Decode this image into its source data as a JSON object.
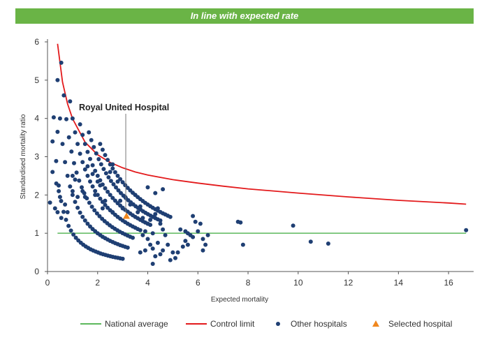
{
  "banner": {
    "text": "In line with expected rate"
  },
  "chart_data": {
    "type": "scatter",
    "xlabel": "Expected mortality",
    "ylabel": "Standardised mortality ratio",
    "xlim": [
      0,
      17
    ],
    "ylim": [
      0,
      6
    ],
    "x_ticks": [
      0,
      2,
      4,
      6,
      8,
      10,
      12,
      14,
      16
    ],
    "y_ticks": [
      0,
      1,
      2,
      3,
      4,
      5,
      6
    ],
    "grid": false,
    "legend_position": "bottom",
    "colors": {
      "national_average": "#5cb85c",
      "control_limit": "#e31a1c",
      "other_hospitals": "#1f3f73",
      "selected_hospital": "#f0871e"
    },
    "national_average": {
      "name": "National average",
      "y": 1
    },
    "control_limit": {
      "name": "Control limit",
      "points": [
        [
          0.4,
          5.95
        ],
        [
          0.6,
          4.95
        ],
        [
          0.8,
          4.38
        ],
        [
          1.0,
          3.99
        ],
        [
          1.5,
          3.38
        ],
        [
          2.0,
          3.05
        ],
        [
          2.5,
          2.85
        ],
        [
          3.0,
          2.71
        ],
        [
          3.5,
          2.6
        ],
        [
          4.0,
          2.52
        ],
        [
          5.0,
          2.4
        ],
        [
          6.0,
          2.31
        ],
        [
          7.0,
          2.23
        ],
        [
          8.0,
          2.16
        ],
        [
          10.0,
          2.05
        ],
        [
          12.0,
          1.95
        ],
        [
          14.0,
          1.86
        ],
        [
          16.0,
          1.79
        ],
        [
          16.7,
          1.76
        ]
      ]
    },
    "other_hospitals": {
      "name": "Other hospitals",
      "points": [
        [
          0.2,
          3.4
        ],
        [
          0.4,
          3.65
        ],
        [
          0.2,
          2.6
        ],
        [
          0.35,
          2.3
        ],
        [
          0.45,
          2.1
        ],
        [
          0.5,
          1.95
        ],
        [
          0.3,
          1.65
        ],
        [
          0.4,
          1.55
        ],
        [
          0.1,
          1.8
        ],
        [
          0.55,
          1.4
        ],
        [
          0.7,
          1.75
        ],
        [
          0.8,
          1.55
        ],
        [
          1.0,
          2.5
        ],
        [
          1.1,
          2.4
        ],
        [
          1.0,
          2.1
        ],
        [
          1.2,
          1.95
        ],
        [
          1.4,
          2.1
        ],
        [
          1.5,
          1.95
        ],
        [
          1.6,
          2.75
        ],
        [
          1.8,
          2.55
        ],
        [
          2.0,
          2.35
        ],
        [
          2.1,
          2.25
        ],
        [
          1.9,
          2.0
        ],
        [
          2.3,
          1.85
        ],
        [
          2.2,
          1.65
        ],
        [
          2.5,
          2.6
        ],
        [
          2.6,
          2.8
        ],
        [
          2.8,
          2.35
        ],
        [
          2.6,
          1.55
        ],
        [
          2.9,
          1.85
        ],
        [
          3.1,
          1.95
        ],
        [
          3.0,
          1.65
        ],
        [
          3.3,
          1.75
        ],
        [
          3.5,
          2.0
        ],
        [
          3.6,
          1.55
        ],
        [
          3.7,
          1.7
        ],
        [
          4.0,
          2.2
        ],
        [
          4.3,
          2.05
        ],
        [
          4.6,
          2.15
        ],
        [
          4.4,
          1.65
        ],
        [
          4.3,
          1.5
        ],
        [
          4.1,
          1.35
        ],
        [
          4.5,
          1.25
        ],
        [
          4.6,
          1.1
        ],
        [
          4.2,
          1.0
        ],
        [
          4.4,
          0.75
        ],
        [
          4.7,
          0.95
        ],
        [
          4.8,
          0.7
        ],
        [
          4.6,
          0.55
        ],
        [
          4.3,
          0.4
        ],
        [
          4.2,
          0.2
        ],
        [
          5.0,
          0.5
        ],
        [
          5.1,
          0.35
        ],
        [
          5.3,
          1.1
        ],
        [
          5.5,
          1.05
        ],
        [
          5.6,
          1.0
        ],
        [
          5.7,
          0.95
        ],
        [
          5.5,
          0.8
        ],
        [
          5.6,
          0.7
        ],
        [
          5.4,
          0.65
        ],
        [
          5.8,
          1.45
        ],
        [
          5.9,
          1.3
        ],
        [
          6.1,
          1.25
        ],
        [
          6.0,
          1.05
        ],
        [
          6.2,
          0.85
        ],
        [
          6.3,
          0.7
        ],
        [
          6.2,
          0.55
        ],
        [
          6.4,
          0.95
        ],
        [
          5.8,
          0.9
        ],
        [
          7.6,
          1.3
        ],
        [
          7.7,
          1.28
        ],
        [
          7.8,
          0.7
        ],
        [
          9.8,
          1.2
        ],
        [
          10.5,
          0.78
        ],
        [
          11.2,
          0.73
        ],
        [
          16.7,
          1.08
        ],
        [
          4.0,
          1.25
        ],
        [
          3.8,
          1.4
        ],
        [
          3.9,
          1.05
        ],
        [
          4.0,
          0.85
        ],
        [
          4.1,
          0.7
        ],
        [
          3.9,
          0.55
        ],
        [
          4.2,
          0.6
        ],
        [
          3.7,
          0.5
        ],
        [
          3.8,
          0.95
        ],
        [
          4.5,
          0.45
        ],
        [
          4.9,
          0.3
        ],
        [
          5.2,
          0.5
        ]
      ],
      "curves": [
        {
          "k": 1,
          "x": [
            0.15,
            3.0
          ]
        },
        {
          "k": 2,
          "x": [
            0.4,
            3.2
          ]
        },
        {
          "k": 3,
          "x": [
            0.55,
            3.4
          ]
        },
        {
          "k": 4,
          "x": [
            0.9,
            3.7
          ]
        },
        {
          "k": 5,
          "x": [
            1.3,
            4.1
          ]
        },
        {
          "k": 6,
          "x": [
            1.65,
            4.5
          ]
        },
        {
          "k": 7,
          "x": [
            2.1,
            4.9
          ]
        }
      ]
    },
    "selected_hospital": {
      "name": "Selected hospital",
      "label": "Royal United Hospital",
      "x": 3.15,
      "y": 1.45
    },
    "legend": [
      "National average",
      "Control limit",
      "Other hospitals",
      "Selected hospital"
    ]
  }
}
